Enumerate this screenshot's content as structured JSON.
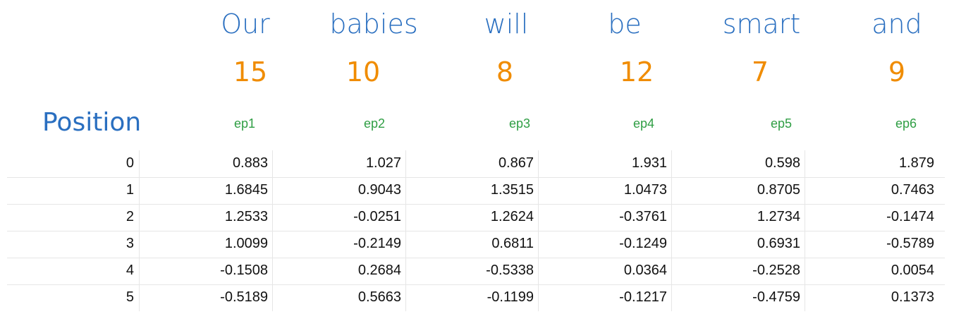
{
  "header": {
    "words": [
      "Our",
      "babies",
      "will",
      "be",
      "smart",
      "and"
    ],
    "numbers": [
      15,
      10,
      8,
      12,
      7,
      9
    ],
    "position_label": "Position",
    "columns": [
      "ep1",
      "ep2",
      "ep3",
      "ep4",
      "ep5",
      "ep6"
    ]
  },
  "table": {
    "rows": [
      [
        0,
        0.883,
        1.027,
        0.867,
        1.931,
        0.598,
        1.879
      ],
      [
        1,
        1.6845,
        0.9043,
        1.3515,
        1.0473,
        0.8705,
        0.7463
      ],
      [
        2,
        1.2533,
        -0.0251,
        1.2624,
        -0.3761,
        1.2734,
        -0.1474
      ],
      [
        3,
        1.0099,
        -0.2149,
        0.6811,
        -0.1249,
        0.6931,
        -0.5789
      ],
      [
        4,
        -0.1508,
        0.2684,
        -0.5338,
        0.0364,
        -0.2528,
        0.0054
      ],
      [
        5,
        -0.5189,
        0.5663,
        -0.1199,
        -0.1217,
        -0.4759,
        0.1373
      ]
    ]
  }
}
